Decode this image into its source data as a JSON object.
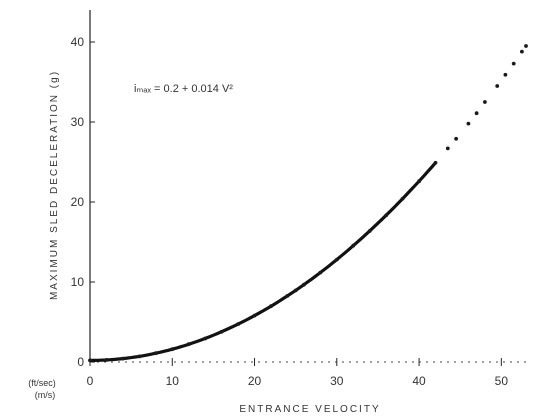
{
  "chart_data": {
    "type": "scatter",
    "title": "",
    "annotation": "iₘₐₓ = 0.2 + 0.014 V²",
    "xlabel": "ENTRANCE VELOCITY",
    "ylabel": "MAXIMUM SLED DECELERATION (g)",
    "x_unit_label_primary": "(ft/sec)",
    "x_unit_label_secondary": "(m/s)",
    "xlim": [
      0,
      53
    ],
    "ylim": [
      0,
      43
    ],
    "xticks": [
      0,
      10,
      20,
      30,
      40,
      50
    ],
    "yticks": [
      0,
      10,
      20,
      30,
      40
    ],
    "xtick_labels": [
      "0",
      "10",
      "20",
      "30",
      "40",
      "50"
    ],
    "ytick_labels": [
      "0",
      "10",
      "20",
      "30",
      "40"
    ],
    "grid": false,
    "fit": {
      "a": 0.2,
      "b": 0.014
    },
    "points": [
      {
        "x": 0,
        "y": 0.2
      },
      {
        "x": 2,
        "y": 0.26
      },
      {
        "x": 4,
        "y": 0.42
      },
      {
        "x": 6,
        "y": 0.7
      },
      {
        "x": 8,
        "y": 1.1
      },
      {
        "x": 10,
        "y": 1.6
      },
      {
        "x": 12,
        "y": 2.22
      },
      {
        "x": 14,
        "y": 2.94
      },
      {
        "x": 16,
        "y": 3.78
      },
      {
        "x": 18,
        "y": 4.74
      },
      {
        "x": 20,
        "y": 5.8
      },
      {
        "x": 22,
        "y": 6.98
      },
      {
        "x": 24,
        "y": 8.26
      },
      {
        "x": 25,
        "y": 8.95
      },
      {
        "x": 26,
        "y": 9.66
      },
      {
        "x": 28,
        "y": 11.18
      },
      {
        "x": 30,
        "y": 12.8
      },
      {
        "x": 32,
        "y": 14.54
      },
      {
        "x": 34,
        "y": 16.38
      },
      {
        "x": 36,
        "y": 18.34
      },
      {
        "x": 38,
        "y": 20.42
      },
      {
        "x": 40,
        "y": 22.6
      },
      {
        "x": 42,
        "y": 24.9
      },
      {
        "x": 43.5,
        "y": 26.7
      },
      {
        "x": 44.5,
        "y": 27.9
      },
      {
        "x": 46,
        "y": 29.8
      },
      {
        "x": 47,
        "y": 31.1
      },
      {
        "x": 48,
        "y": 32.5
      },
      {
        "x": 49.5,
        "y": 34.5
      },
      {
        "x": 50.5,
        "y": 35.9
      },
      {
        "x": 51.5,
        "y": 37.3
      },
      {
        "x": 52.5,
        "y": 38.8
      },
      {
        "x": 53,
        "y": 39.5
      }
    ]
  }
}
